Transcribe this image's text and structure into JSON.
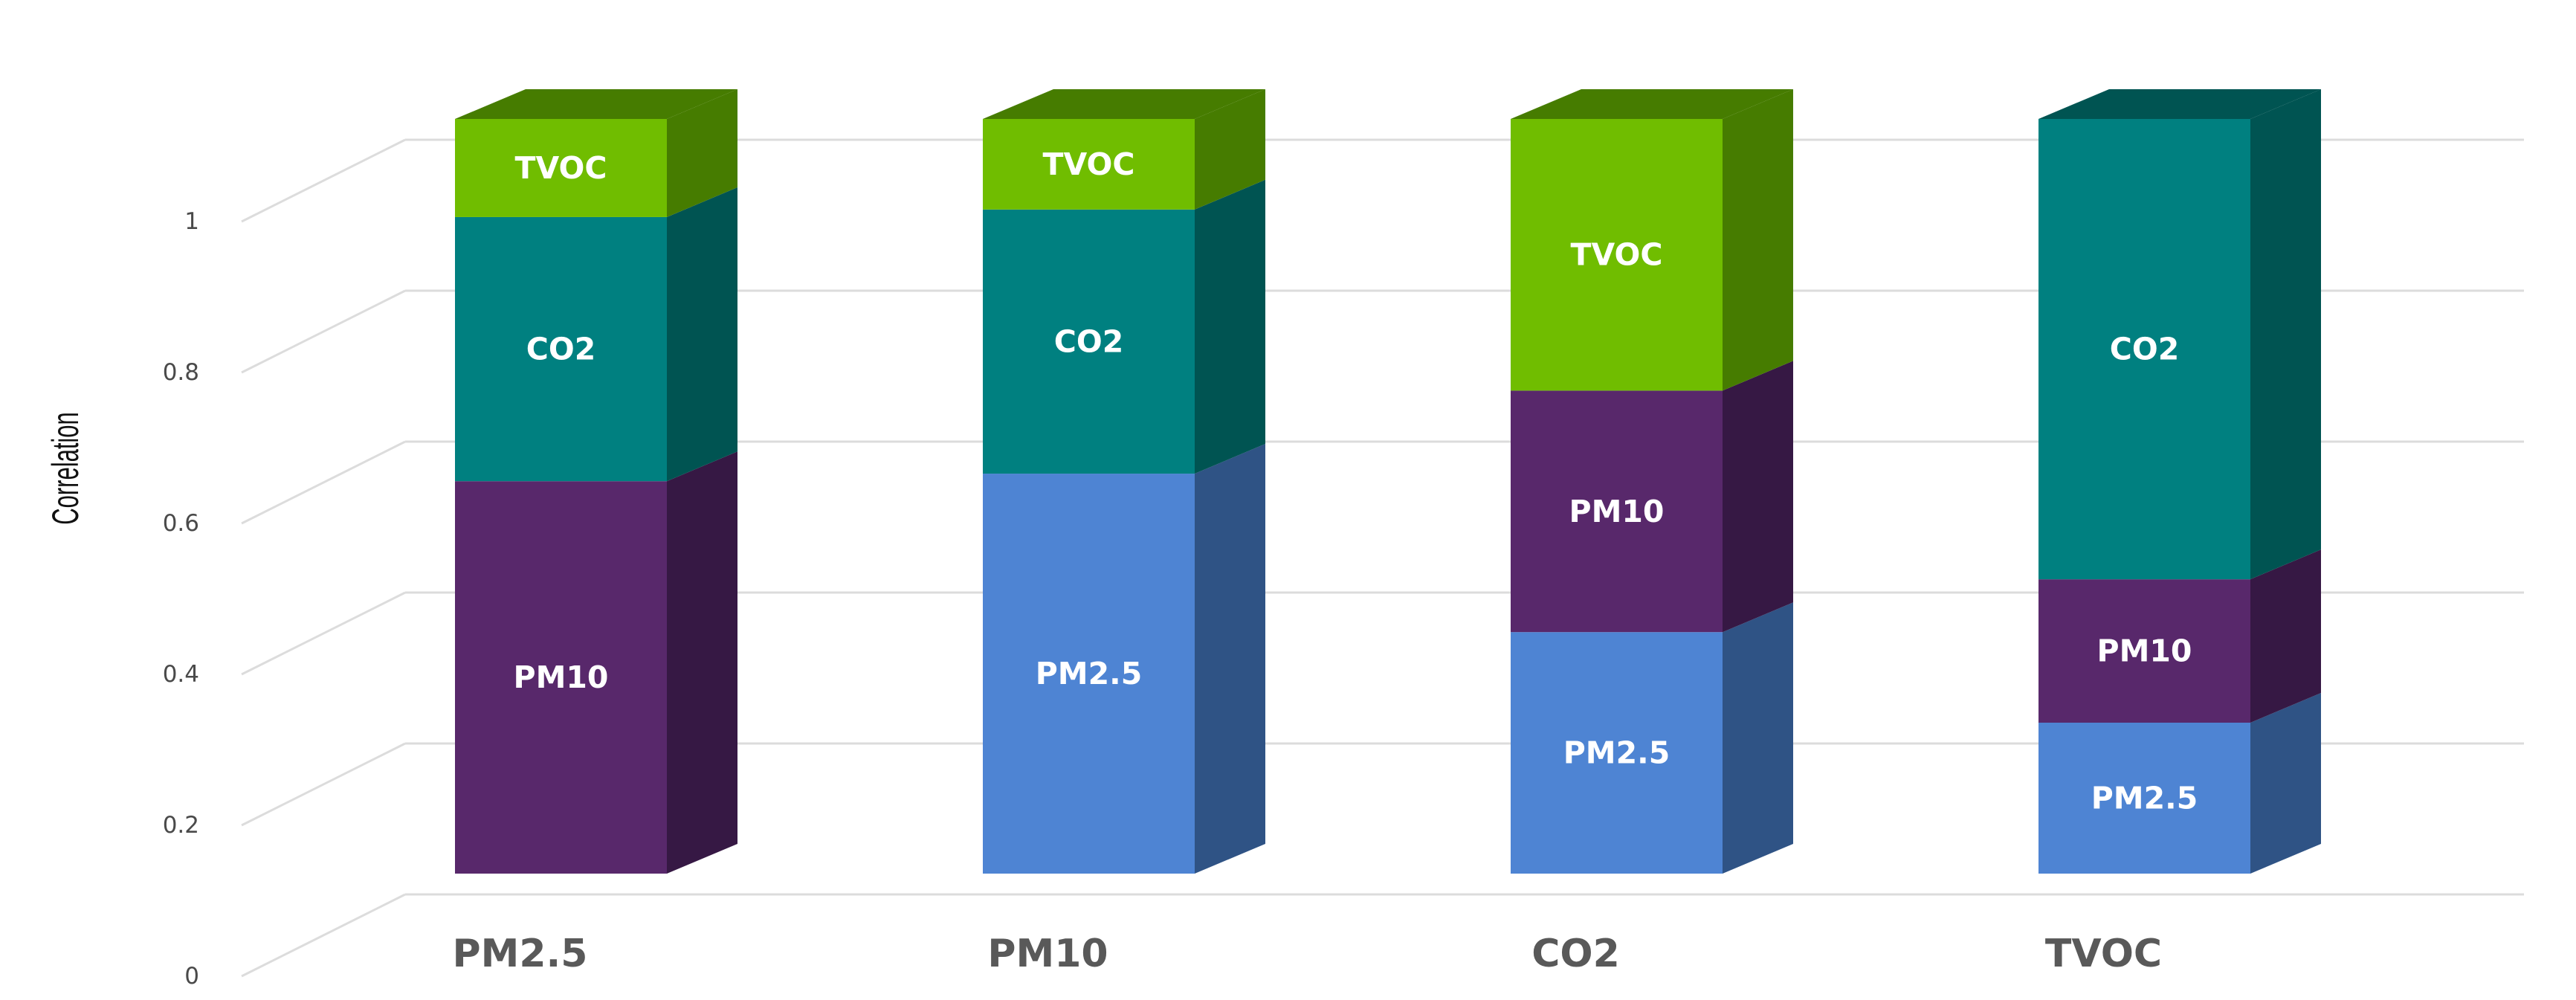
{
  "chart_data": {
    "type": "bar",
    "stacked": true,
    "three_d": true,
    "title": "",
    "xlabel": "",
    "ylabel": "Correlation",
    "ylim": [
      0,
      1
    ],
    "yticks": [
      "0",
      "0.2",
      "0.4",
      "0.6",
      "0.8",
      "1"
    ],
    "categories": [
      "PM2.5",
      "PM10",
      "CO2",
      "TVOC"
    ],
    "grid": true,
    "legend": "none",
    "series": [
      {
        "name": "PM2.5",
        "color": "#4e84d3",
        "side_color": "#2f5385",
        "values": [
          0,
          0.53,
          0.32,
          0.2
        ]
      },
      {
        "name": "PM10",
        "color": "#58286b",
        "side_color": "#361844",
        "values": [
          0.52,
          0,
          0.32,
          0.19
        ]
      },
      {
        "name": "CO2",
        "color": "#008080",
        "side_color": "#005452",
        "values": [
          0.35,
          0.35,
          0,
          0.61
        ]
      },
      {
        "name": "TVOC",
        "color": "#70bd00",
        "side_color": "#467c00",
        "values": [
          0.13,
          0.12,
          0.36,
          0
        ]
      }
    ],
    "segment_labels": [
      [
        "",
        "PM10",
        "CO2",
        "TVOC"
      ],
      [
        "PM2.5",
        "",
        "CO2",
        "TVOC"
      ],
      [
        "PM2.5",
        "PM10",
        "",
        "TVOC"
      ],
      [
        "PM2.5",
        "PM10",
        "CO2",
        ""
      ]
    ]
  }
}
